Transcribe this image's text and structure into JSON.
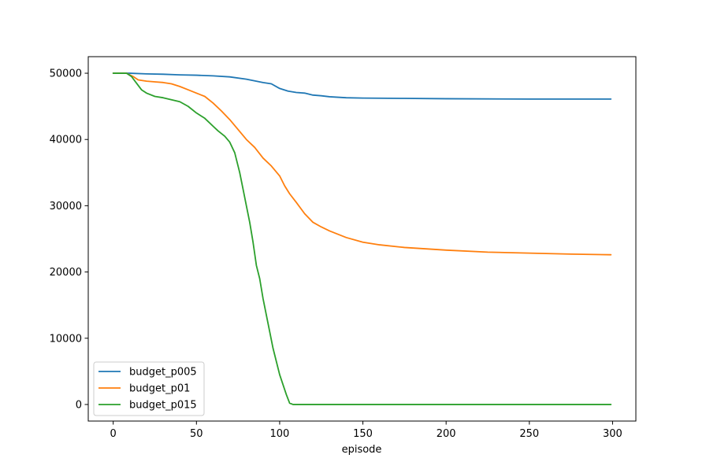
{
  "chart_data": {
    "type": "line",
    "title": "",
    "xlabel": "episode",
    "ylabel": "",
    "xlim": [
      -15,
      314
    ],
    "ylim": [
      -2500,
      52500
    ],
    "xticks": [
      0,
      50,
      100,
      150,
      200,
      250,
      300
    ],
    "yticks": [
      0,
      10000,
      20000,
      30000,
      40000,
      50000
    ],
    "grid": false,
    "legend_position": "lower-left",
    "series": [
      {
        "name": "budget_p005",
        "color": "#1f77b4",
        "points": [
          [
            0,
            50000
          ],
          [
            10,
            50000
          ],
          [
            20,
            49900
          ],
          [
            30,
            49850
          ],
          [
            40,
            49750
          ],
          [
            50,
            49700
          ],
          [
            60,
            49600
          ],
          [
            70,
            49450
          ],
          [
            80,
            49100
          ],
          [
            90,
            48600
          ],
          [
            95,
            48400
          ],
          [
            100,
            47700
          ],
          [
            105,
            47300
          ],
          [
            110,
            47100
          ],
          [
            115,
            47000
          ],
          [
            120,
            46700
          ],
          [
            125,
            46600
          ],
          [
            130,
            46450
          ],
          [
            140,
            46300
          ],
          [
            150,
            46250
          ],
          [
            175,
            46200
          ],
          [
            200,
            46150
          ],
          [
            250,
            46100
          ],
          [
            299,
            46100
          ]
        ]
      },
      {
        "name": "budget_p01",
        "color": "#ff7f0e",
        "points": [
          [
            0,
            50000
          ],
          [
            8,
            50000
          ],
          [
            12,
            49500
          ],
          [
            15,
            49000
          ],
          [
            20,
            48800
          ],
          [
            25,
            48700
          ],
          [
            30,
            48600
          ],
          [
            35,
            48400
          ],
          [
            40,
            48000
          ],
          [
            45,
            47500
          ],
          [
            50,
            47000
          ],
          [
            55,
            46500
          ],
          [
            60,
            45500
          ],
          [
            65,
            44300
          ],
          [
            70,
            43000
          ],
          [
            75,
            41500
          ],
          [
            80,
            40000
          ],
          [
            85,
            38800
          ],
          [
            90,
            37200
          ],
          [
            95,
            36000
          ],
          [
            100,
            34500
          ],
          [
            103,
            33000
          ],
          [
            106,
            31800
          ],
          [
            110,
            30500
          ],
          [
            115,
            28800
          ],
          [
            120,
            27500
          ],
          [
            125,
            26800
          ],
          [
            130,
            26200
          ],
          [
            140,
            25200
          ],
          [
            150,
            24500
          ],
          [
            160,
            24100
          ],
          [
            175,
            23700
          ],
          [
            200,
            23300
          ],
          [
            225,
            23000
          ],
          [
            250,
            22850
          ],
          [
            275,
            22700
          ],
          [
            299,
            22600
          ]
        ]
      },
      {
        "name": "budget_p015",
        "color": "#2ca02c",
        "points": [
          [
            0,
            50000
          ],
          [
            8,
            50000
          ],
          [
            11,
            49500
          ],
          [
            14,
            48500
          ],
          [
            17,
            47500
          ],
          [
            20,
            47000
          ],
          [
            25,
            46500
          ],
          [
            30,
            46300
          ],
          [
            35,
            46000
          ],
          [
            40,
            45700
          ],
          [
            45,
            45000
          ],
          [
            50,
            44000
          ],
          [
            55,
            43200
          ],
          [
            60,
            42000
          ],
          [
            63,
            41300
          ],
          [
            67,
            40500
          ],
          [
            70,
            39600
          ],
          [
            73,
            38000
          ],
          [
            76,
            35000
          ],
          [
            78,
            32500
          ],
          [
            80,
            30000
          ],
          [
            82,
            27500
          ],
          [
            84,
            24500
          ],
          [
            86,
            21000
          ],
          [
            88,
            19000
          ],
          [
            90,
            16000
          ],
          [
            92,
            13500
          ],
          [
            94,
            11000
          ],
          [
            96,
            8500
          ],
          [
            98,
            6500
          ],
          [
            100,
            4500
          ],
          [
            102,
            3000
          ],
          [
            104,
            1500
          ],
          [
            106,
            200
          ],
          [
            108,
            0
          ],
          [
            150,
            0
          ],
          [
            200,
            0
          ],
          [
            250,
            0
          ],
          [
            299,
            0
          ]
        ]
      }
    ]
  }
}
